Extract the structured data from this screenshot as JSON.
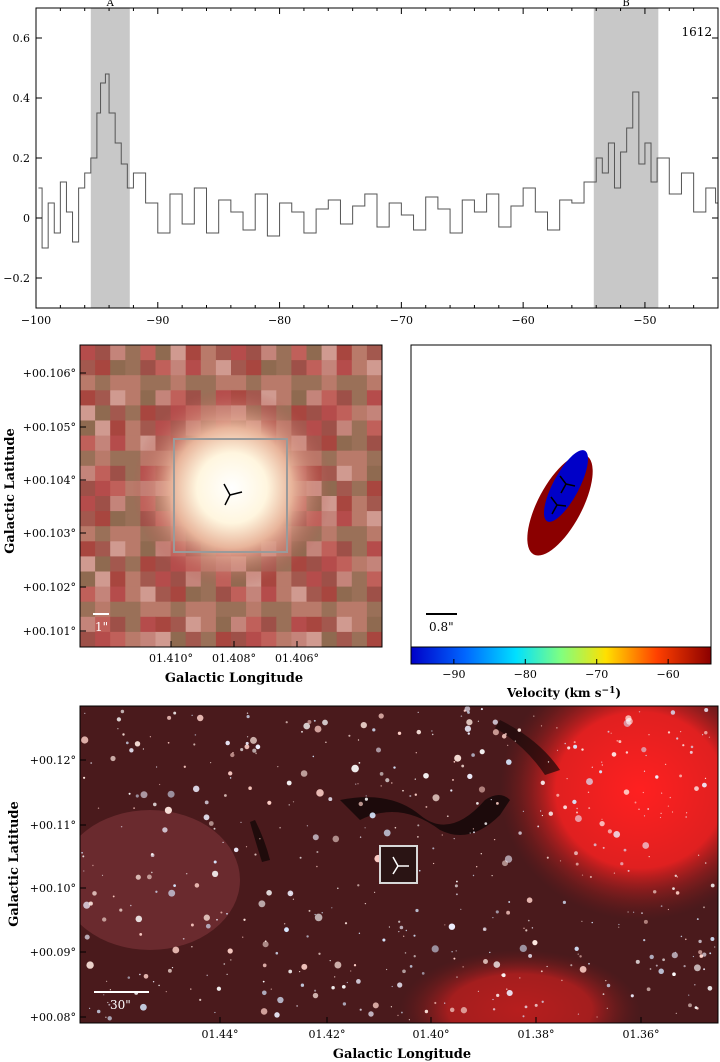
{
  "chart_data": [
    {
      "type": "line",
      "panel": "spectrum",
      "annotation": "1612",
      "x_ticks": [
        "−100",
        "−90",
        "−80",
        "−70",
        "−60",
        "−50"
      ],
      "x_tick_values": [
        -100,
        -90,
        -80,
        -70,
        -60,
        -50
      ],
      "y_ticks": [
        "−0.2",
        "0",
        "0.2",
        "0.4",
        "0.6"
      ],
      "y_tick_values": [
        -0.2,
        0,
        0.2,
        0.4,
        0.6
      ],
      "xlim": [
        -100,
        -44
      ],
      "ylim": [
        -0.3,
        0.7
      ],
      "shaded_bands": [
        {
          "label": "A",
          "x": [
            -95.5,
            -92.3
          ]
        },
        {
          "label": "B",
          "x": [
            -54.2,
            -48.9
          ]
        }
      ],
      "series": [
        {
          "x": [
            -99.8,
            -99.5,
            -99.0,
            -98.5,
            -98.0,
            -97.5,
            -97.0,
            -96.5,
            -96.0,
            -95.5,
            -95.0,
            -94.7,
            -94.3,
            -94.0,
            -93.5,
            -93.0,
            -92.5,
            -92.0,
            -91.0,
            -90.0,
            -89.0,
            -88.0,
            -87.0,
            -86.0,
            -85.0,
            -84.0,
            -83.0,
            -82.0,
            -81.0,
            -80.0,
            -79.0,
            -78.0,
            -77.0,
            -76.0,
            -75.0,
            -74.0,
            -73.0,
            -72.0,
            -71.0,
            -70.0,
            -69.0,
            -68.0,
            -67.0,
            -66.0,
            -65.0,
            -64.0,
            -63.0,
            -62.0,
            -61.0,
            -60.0,
            -59.0,
            -58.0,
            -57.0,
            -56.0,
            -55.0,
            -54.0,
            -53.5,
            -53.0,
            -52.5,
            -52.0,
            -51.5,
            -51.0,
            -50.5,
            -50.0,
            -49.5,
            -49.0,
            -48.0,
            -47.0,
            -46.0,
            -45.0,
            -44.2
          ],
          "y": [
            0.1,
            -0.1,
            0.05,
            -0.05,
            0.12,
            0.02,
            -0.08,
            0.1,
            0.15,
            0.2,
            0.35,
            0.45,
            0.48,
            0.35,
            0.25,
            0.18,
            0.1,
            0.15,
            0.05,
            -0.05,
            0.08,
            -0.02,
            0.1,
            -0.05,
            0.06,
            0.02,
            -0.04,
            0.08,
            -0.06,
            0.05,
            0.02,
            -0.05,
            0.03,
            0.06,
            -0.02,
            0.04,
            0.08,
            -0.03,
            0.05,
            0.01,
            -0.04,
            0.07,
            0.03,
            -0.05,
            0.06,
            0.02,
            0.08,
            -0.03,
            0.04,
            0.1,
            0.02,
            -0.04,
            0.06,
            0.05,
            0.12,
            0.2,
            0.15,
            0.25,
            0.1,
            0.22,
            0.3,
            0.42,
            0.18,
            0.25,
            0.12,
            0.2,
            0.08,
            0.15,
            0.02,
            0.1,
            0.05
          ]
        }
      ]
    },
    {
      "type": "heatmap",
      "panel": "zoom-image",
      "xlabel": "Galactic Longitude",
      "ylabel": "Galactic Latitude",
      "x_ticks": [
        "01.410°",
        "01.408°",
        "01.406°"
      ],
      "y_ticks": [
        "+00.106°",
        "+00.105°",
        "+00.104°",
        "+00.103°",
        "+00.102°",
        "+00.101°"
      ],
      "scale_bar": "1\""
    },
    {
      "type": "other",
      "panel": "velocity-ellipses",
      "scale_bar": "0.8\"",
      "colorbar_label": "Velocity (km s",
      "colorbar_label_sup": "−1",
      "colorbar_label_end": ")",
      "colorbar_ticks": [
        "−90",
        "−80",
        "−70",
        "−60"
      ],
      "colorbar_tick_values": [
        -90,
        -80,
        -70,
        -60
      ],
      "colorbar_range": [
        -96,
        -54
      ],
      "ellipses": [
        {
          "color": "#8b0000"
        },
        {
          "color": "#0000c8"
        }
      ]
    },
    {
      "type": "heatmap",
      "panel": "wide-image",
      "xlabel": "Galactic Longitude",
      "ylabel": "Galactic Latitude",
      "x_ticks": [
        "01.44°",
        "01.42°",
        "01.40°",
        "01.38°",
        "01.36°"
      ],
      "y_ticks": [
        "+00.12°",
        "+00.11°",
        "+00.10°",
        "+00.09°",
        "+00.08°"
      ],
      "scale_bar": "30\""
    }
  ]
}
